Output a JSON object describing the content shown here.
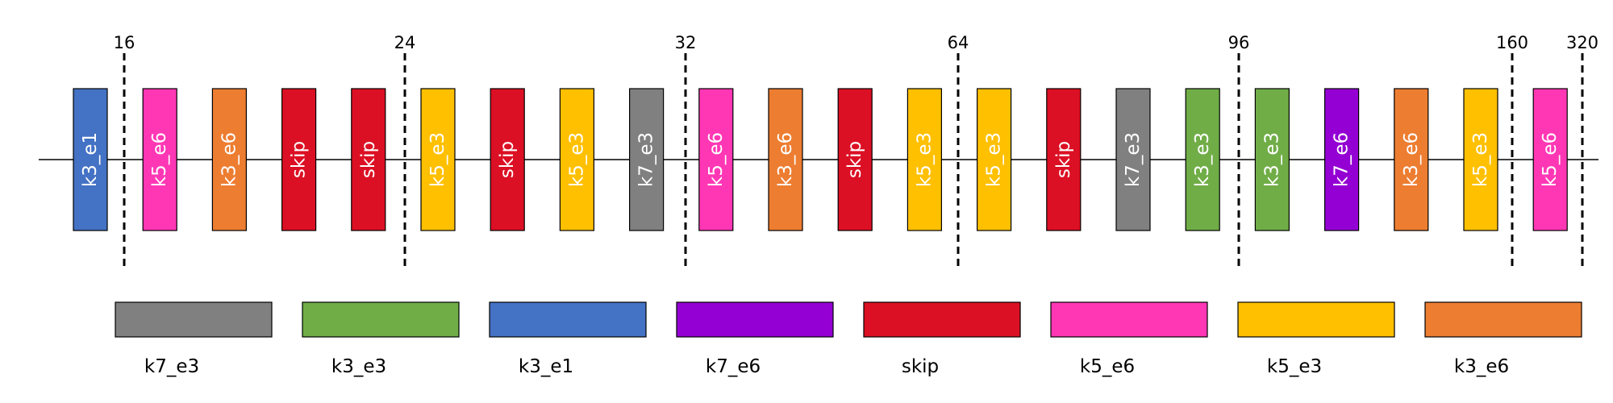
{
  "colors": {
    "k3_e1": "#4472C4",
    "k5_e6": "#FF37B5",
    "k3_e6": "#ED7D31",
    "skip": "#DC1024",
    "k5_e3": "#FFC000",
    "k7_e3": "#808080",
    "k3_e3": "#70AD47",
    "k7_e6": "#9400D3"
  },
  "blocks": [
    "k3_e1",
    "k5_e6",
    "k3_e6",
    "skip",
    "skip",
    "k5_e3",
    "skip",
    "k5_e3",
    "k7_e3",
    "k5_e6",
    "k3_e6",
    "skip",
    "k5_e3",
    "k5_e3",
    "skip",
    "k7_e3",
    "k3_e3",
    "k3_e3",
    "k7_e6",
    "k3_e6",
    "k5_e3",
    "k5_e6"
  ],
  "stage_markers": [
    "16",
    "24",
    "32",
    "64",
    "96",
    "160",
    "320"
  ],
  "legend": [
    "k7_e3",
    "k3_e3",
    "k3_e1",
    "k7_e6",
    "skip",
    "k5_e6",
    "k5_e3",
    "k3_e6"
  ]
}
